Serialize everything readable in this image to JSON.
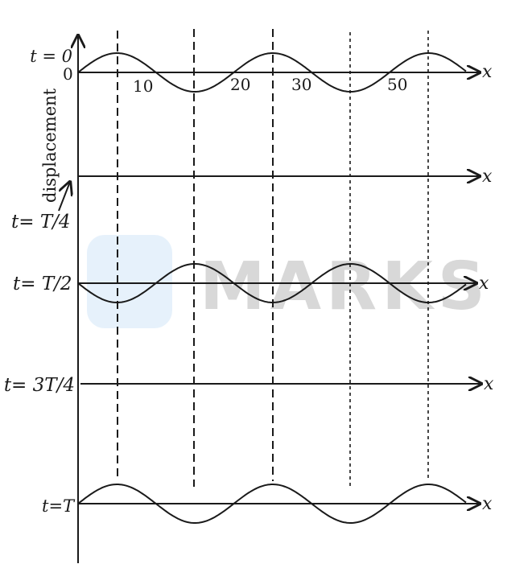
{
  "vertical_axis_label": "displacement",
  "x_axis_symbol": "x",
  "time_labels": {
    "t0": "t = 0",
    "t1": "t= T/4",
    "t2": "t= T/2",
    "t3": "t= 3T/4",
    "t4": "t=T"
  },
  "origin_label": "0",
  "x_ticks": [
    "10",
    "20",
    "30",
    "50"
  ],
  "watermark": "MARKS",
  "colors": {
    "ink": "#1a1a1a",
    "watermark_text": "#d8d8d8",
    "watermark_logo": "#e6f1fb"
  }
}
